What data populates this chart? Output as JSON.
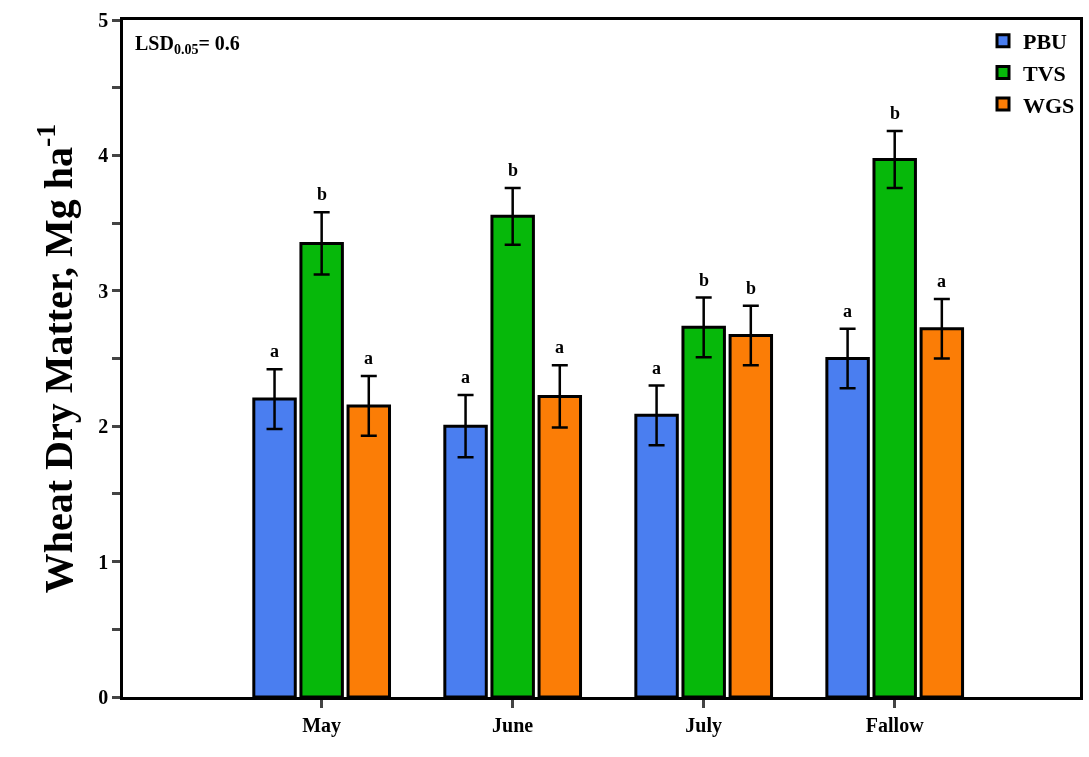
{
  "chart_data": {
    "type": "bar",
    "ylabel": "Wheat Dry Matter, Mg ha$^{-1}$",
    "categories": [
      "May",
      "June",
      "July",
      "Fallow"
    ],
    "series": [
      {
        "name": "PBU",
        "color": "#4a7ef0",
        "values": [
          2.2,
          2.0,
          2.08,
          2.5
        ],
        "errors": [
          0.22,
          0.23,
          0.22,
          0.22
        ],
        "value_labels": [
          "a",
          "a",
          "a",
          "a"
        ]
      },
      {
        "name": "TVS",
        "color": "#06b80a",
        "values": [
          3.35,
          3.55,
          2.73,
          3.97
        ],
        "errors": [
          0.23,
          0.21,
          0.22,
          0.21
        ],
        "value_labels": [
          "b",
          "b",
          "b",
          "b"
        ]
      },
      {
        "name": "WGS",
        "color": "#fb7d06",
        "values": [
          2.15,
          2.22,
          2.67,
          2.72
        ],
        "errors": [
          0.22,
          0.23,
          0.22,
          0.22
        ],
        "value_labels": [
          "a",
          "a",
          "b",
          "a"
        ]
      }
    ],
    "ylim": [
      0,
      5
    ],
    "yticks": [
      0,
      {
        "value": 0.5,
        "label": null
      },
      1,
      {
        "value": 1.5,
        "label": null
      },
      2,
      {
        "value": 2.5,
        "label": null
      },
      3,
      {
        "value": 3.5,
        "label": null
      },
      4,
      {
        "value": 4.5,
        "label": null
      },
      5
    ],
    "legend": "top right",
    "annotations": [
      "LSD$_{0.05}$= 0.6"
    ]
  }
}
